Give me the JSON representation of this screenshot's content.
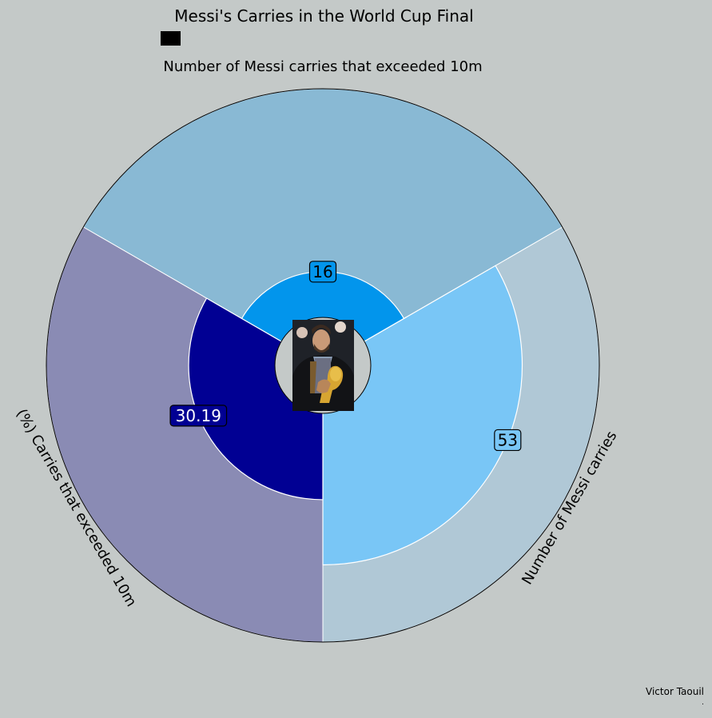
{
  "chart_data": {
    "type": "pie",
    "title": "Messi's Carries in the World Cup Final",
    "categories": [
      "Number of Messi carries that exceeded 10m",
      "Number of Messi carries",
      "(%) Carries that exceeded 10m"
    ],
    "values": [
      16,
      53,
      30.19
    ],
    "value_labels": [
      "16",
      "53",
      "30.19"
    ],
    "outer_colors": [
      "#89b9d4",
      "#b0c8d6",
      "#8a8bb4"
    ],
    "inner_colors": [
      "#0295ec",
      "#79c6f6",
      "#010093"
    ],
    "label_text_colors": [
      "#000000",
      "#000000",
      "#ffffff"
    ],
    "radial_max": 80,
    "center_image": "messi-trophy-photo",
    "legend": "top-left"
  },
  "credit": {
    "author": "Victor Taouil",
    "note": "."
  }
}
